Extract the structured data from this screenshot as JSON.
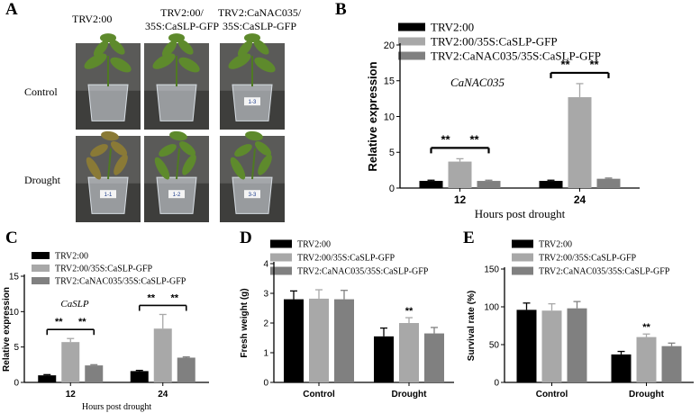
{
  "panels": {
    "a": {
      "letter": "A",
      "col_headers": [
        {
          "lines": [
            "TRV2:00"
          ]
        },
        {
          "lines": [
            "TRV2:00/",
            "35S:CaSLP-GFP"
          ]
        },
        {
          "lines": [
            "TRV2:CaNAC035/",
            "35S:CaSLP-GFP"
          ]
        }
      ],
      "row_labels": [
        "Control",
        "Drought"
      ],
      "pot_tags": [
        "",
        "",
        "1-3",
        "1-1",
        "1-2",
        "3-3"
      ]
    },
    "b": {
      "letter": "B"
    },
    "c": {
      "letter": "C"
    },
    "d": {
      "letter": "D"
    },
    "e": {
      "letter": "E"
    }
  },
  "colors": {
    "series": [
      "#000000",
      "#a8a8a8",
      "#808080"
    ],
    "photo_bg": "#5a5a58",
    "leaf": "#5e8a2c"
  },
  "chart_data": [
    {
      "id": "b",
      "type": "bar",
      "title": "",
      "annotation": "CaNAC035",
      "xlabel": "Hours post drought",
      "ylabel": "Relative expression",
      "categories": [
        "12",
        "24"
      ],
      "ylim": [
        0,
        20
      ],
      "yticks": [
        0,
        5,
        10,
        15,
        20
      ],
      "series": [
        {
          "name": "TRV2:00",
          "values": [
            1.0,
            1.0
          ],
          "errors": [
            0.1,
            0.1
          ]
        },
        {
          "name": "TRV2:00/35S:CaSLP-GFP",
          "values": [
            3.7,
            12.7
          ],
          "errors": [
            0.4,
            1.9
          ]
        },
        {
          "name": "TRV2:CaNAC035/35S:CaSLP-GFP",
          "values": [
            1.0,
            1.3
          ],
          "errors": [
            0.1,
            0.1
          ]
        }
      ],
      "significance": [
        {
          "category": 0,
          "from": 0,
          "to": 1,
          "label": "**"
        },
        {
          "category": 0,
          "from": 1,
          "to": 2,
          "label": "**"
        },
        {
          "category": 1,
          "from": 0,
          "to": 1,
          "label": "**"
        },
        {
          "category": 1,
          "from": 1,
          "to": 2,
          "label": "**"
        }
      ],
      "grid": false,
      "legend": "top"
    },
    {
      "id": "c",
      "type": "bar",
      "title": "",
      "annotation": "CaSLP",
      "xlabel": "Hours post drought",
      "ylabel": "Relative expression",
      "categories": [
        "12",
        "24"
      ],
      "ylim": [
        0,
        15
      ],
      "yticks": [
        0,
        5,
        10,
        15
      ],
      "series": [
        {
          "name": "TRV2:00",
          "values": [
            1.0,
            1.6
          ],
          "errors": [
            0.1,
            0.1
          ]
        },
        {
          "name": "TRV2:00/35S:CaSLP-GFP",
          "values": [
            5.7,
            7.6
          ],
          "errors": [
            0.5,
            2.0
          ]
        },
        {
          "name": "TRV2:CaNAC035/35S:CaSLP-GFP",
          "values": [
            2.4,
            3.5
          ],
          "errors": [
            0.1,
            0.1
          ]
        }
      ],
      "significance": [
        {
          "category": 0,
          "from": 0,
          "to": 1,
          "label": "**"
        },
        {
          "category": 0,
          "from": 1,
          "to": 2,
          "label": "**"
        },
        {
          "category": 1,
          "from": 0,
          "to": 1,
          "label": "**"
        },
        {
          "category": 1,
          "from": 1,
          "to": 2,
          "label": "**"
        }
      ],
      "grid": false,
      "legend": "top"
    },
    {
      "id": "d",
      "type": "bar",
      "title": "",
      "annotation": "",
      "xlabel": "",
      "ylabel": "Fresh weight (g)",
      "categories": [
        "Control",
        "Drought"
      ],
      "ylim": [
        0,
        4
      ],
      "yticks": [
        0,
        1,
        2,
        3,
        4
      ],
      "series": [
        {
          "name": "TRV2:00",
          "values": [
            2.8,
            1.55
          ],
          "errors": [
            0.28,
            0.28
          ]
        },
        {
          "name": "TRV2:00/35S:CaSLP-GFP",
          "values": [
            2.82,
            2.0
          ],
          "errors": [
            0.3,
            0.18
          ]
        },
        {
          "name": "TRV2:CaNAC035/35S:CaSLP-GFP",
          "values": [
            2.8,
            1.65
          ],
          "errors": [
            0.3,
            0.2
          ]
        }
      ],
      "significance": [
        {
          "category": 1,
          "series": 1,
          "label": "**"
        }
      ],
      "grid": false,
      "legend": "top"
    },
    {
      "id": "e",
      "type": "bar",
      "title": "",
      "annotation": "",
      "xlabel": "",
      "ylabel": "Survival rate (%)",
      "categories": [
        "Control",
        "Drought"
      ],
      "ylim": [
        0,
        150
      ],
      "yticks": [
        0,
        50,
        100,
        150
      ],
      "series": [
        {
          "name": "TRV2:00",
          "values": [
            96,
            37
          ],
          "errors": [
            9,
            4
          ]
        },
        {
          "name": "TRV2:00/35S:CaSLP-GFP",
          "values": [
            95,
            60
          ],
          "errors": [
            9,
            4
          ]
        },
        {
          "name": "TRV2:CaNAC035/35S:CaSLP-GFP",
          "values": [
            98,
            48
          ],
          "errors": [
            9,
            4
          ]
        }
      ],
      "significance": [
        {
          "category": 1,
          "series": 1,
          "label": "**"
        }
      ],
      "grid": false,
      "legend": "top"
    }
  ]
}
